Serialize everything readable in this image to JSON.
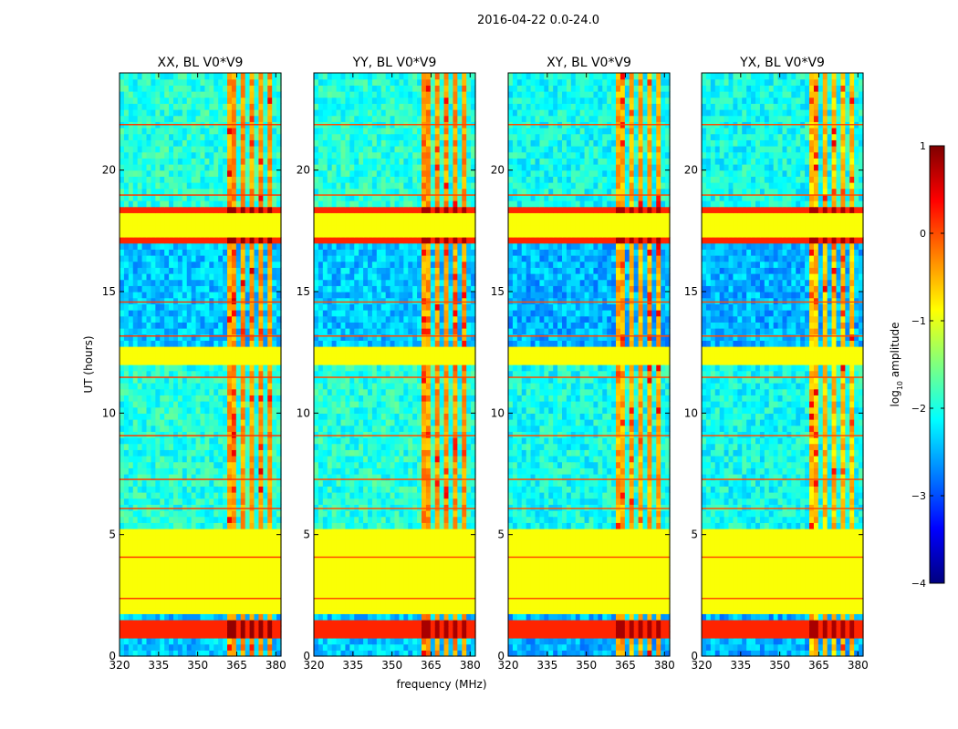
{
  "figure": {
    "suptitle": "2016-04-22 0.0-24.0",
    "xlabel": "frequency (MHz)",
    "ylabel": "UT (hours)"
  },
  "colorbar": {
    "label_prefix": "log",
    "label_sub": "10",
    "label_suffix": " amplitude",
    "range": [
      -4,
      1
    ],
    "ticks": [
      1,
      0,
      -1,
      -2,
      -3,
      -4
    ],
    "tick_labels": [
      "1",
      "0",
      "−1",
      "−2",
      "−3",
      "−4"
    ],
    "colormap": "jet"
  },
  "chart_data": [
    {
      "type": "heatmap",
      "title": "XX, BL V0*V9",
      "xlim": [
        320,
        382
      ],
      "ylim": [
        0,
        24
      ],
      "xticks": [
        320,
        335,
        350,
        365,
        380
      ],
      "yticks": [
        0,
        5,
        10,
        15,
        20
      ],
      "xtick_labels": [
        "320",
        "335",
        "350",
        "365",
        "380"
      ],
      "ytick_labels": [
        "0",
        "5",
        "10",
        "15",
        "20"
      ],
      "base_level": -2.4,
      "rfi_band_level": -0.5,
      "hot_spot_level": 0.6
    },
    {
      "type": "heatmap",
      "title": "YY, BL V0*V9",
      "xlim": [
        320,
        382
      ],
      "ylim": [
        0,
        24
      ],
      "xticks": [
        320,
        335,
        350,
        365,
        380
      ],
      "yticks": [
        0,
        5,
        10,
        15,
        20
      ],
      "xtick_labels": [
        "320",
        "335",
        "350",
        "365",
        "380"
      ],
      "ytick_labels": [
        "0",
        "5",
        "10",
        "15",
        "20"
      ],
      "base_level": -2.4,
      "rfi_band_level": -0.5,
      "hot_spot_level": 0.5
    },
    {
      "type": "heatmap",
      "title": "XY, BL V0*V9",
      "xlim": [
        320,
        382
      ],
      "ylim": [
        0,
        24
      ],
      "xticks": [
        320,
        335,
        350,
        365,
        380
      ],
      "yticks": [
        0,
        5,
        10,
        15,
        20
      ],
      "xtick_labels": [
        "320",
        "335",
        "350",
        "365",
        "380"
      ],
      "ytick_labels": [
        "0",
        "5",
        "10",
        "15",
        "20"
      ],
      "base_level": -2.5,
      "rfi_band_level": -0.6,
      "hot_spot_level": 0.5
    },
    {
      "type": "heatmap",
      "title": "YX, BL V0*V9",
      "xlim": [
        320,
        382
      ],
      "ylim": [
        0,
        24
      ],
      "xticks": [
        320,
        335,
        350,
        365,
        380
      ],
      "yticks": [
        0,
        5,
        10,
        15,
        20
      ],
      "xtick_labels": [
        "320",
        "335",
        "350",
        "365",
        "380"
      ],
      "ytick_labels": [
        "0",
        "5",
        "10",
        "15",
        "20"
      ],
      "base_level": -2.5,
      "rfi_band_level": -0.7,
      "hot_spot_level": 0.5
    }
  ],
  "bands": {
    "flagged_hours": [
      [
        1.8,
        5.3
      ],
      [
        12.0,
        12.7
      ],
      [
        17.3,
        18.3
      ]
    ],
    "saturated_hours": [
      [
        0.8,
        1.5
      ],
      [
        16.9,
        17.2
      ],
      [
        18.3,
        18.5
      ]
    ],
    "rfi_freq_mhz": [
      [
        361.5,
        365.5
      ],
      [
        367,
        368.5
      ],
      [
        370,
        372
      ],
      [
        373,
        375
      ],
      [
        376,
        379
      ]
    ]
  }
}
